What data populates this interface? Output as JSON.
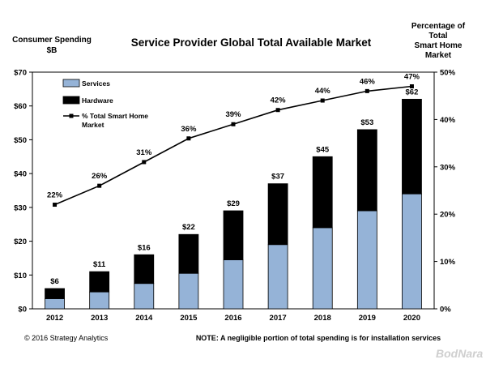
{
  "chart_data": {
    "type": "bar",
    "title": "Service Provider Global Total Available Market",
    "ylabel": "Consumer Spending $B",
    "y2label": "Percentage of Total Smart Home Market",
    "categories": [
      "2012",
      "2013",
      "2014",
      "2015",
      "2016",
      "2017",
      "2018",
      "2019",
      "2020"
    ],
    "stacked": true,
    "series": [
      {
        "name": "Services",
        "color": "#95b3d7",
        "values": [
          3,
          5,
          7.5,
          10.5,
          14.5,
          19,
          24,
          29,
          34
        ]
      },
      {
        "name": "Hardware",
        "color": "#000000",
        "values": [
          3,
          6,
          8.5,
          11.5,
          14.5,
          18,
          21,
          24,
          28
        ]
      }
    ],
    "totals_labels": [
      "$6",
      "$11",
      "$16",
      "$22",
      "$29",
      "$37",
      "$45",
      "$53",
      "$62"
    ],
    "line_series": {
      "name": "% Total Smart Home Market",
      "axis": "right",
      "values": [
        22,
        26,
        31,
        36,
        39,
        42,
        44,
        46,
        47
      ],
      "labels": [
        "22%",
        "26%",
        "31%",
        "36%",
        "39%",
        "42%",
        "44%",
        "46%",
        "47%"
      ]
    },
    "ylim": [
      0,
      70
    ],
    "y_ticks": [
      "$0",
      "$10",
      "$20",
      "$30",
      "$40",
      "$50",
      "$60",
      "$70"
    ],
    "y2lim": [
      0,
      50
    ],
    "y2_ticks": [
      "0%",
      "10%",
      "20%",
      "30%",
      "40%",
      "50%"
    ],
    "legend_position": "top-left, inside plot",
    "grid": false
  },
  "footer": {
    "copyright": "© 2016 Strategy Analytics",
    "note": "NOTE: A negligible portion of total spending is for installation services"
  },
  "watermark": "BodNara"
}
